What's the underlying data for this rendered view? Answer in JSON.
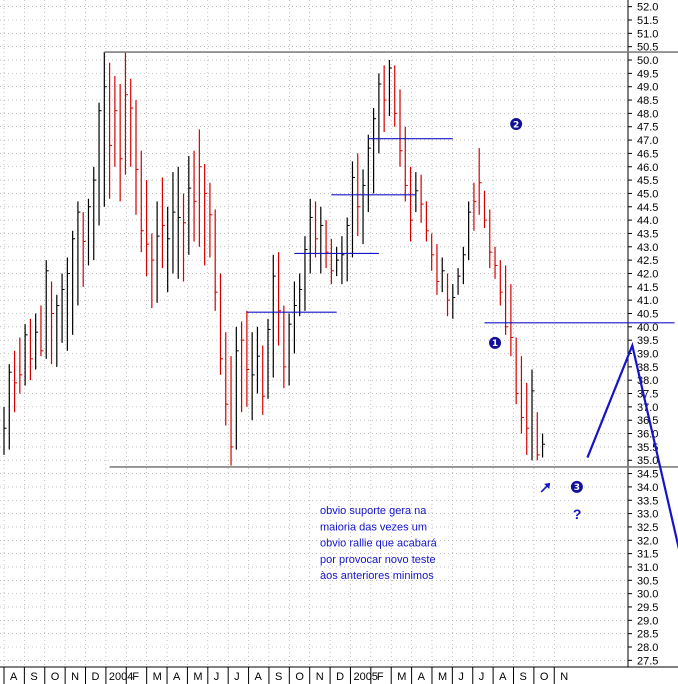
{
  "chart_data": {
    "type": "bar",
    "subtype": "ohlc-price-bars",
    "title": "",
    "xlabel": "",
    "ylabel": "",
    "ylim": [
      27.25,
      52.25
    ],
    "y_ticks": [
      27.5,
      28.0,
      28.5,
      29.0,
      29.5,
      30.0,
      30.5,
      31.0,
      31.5,
      32.0,
      32.5,
      33.0,
      33.5,
      34.0,
      34.5,
      35.0,
      35.5,
      36.0,
      36.5,
      37.0,
      37.5,
      38.0,
      38.5,
      39.0,
      39.5,
      40.0,
      40.5,
      41.0,
      41.5,
      42.0,
      42.5,
      43.0,
      43.5,
      44.0,
      44.5,
      45.0,
      45.5,
      46.0,
      46.5,
      47.0,
      47.5,
      48.0,
      48.5,
      49.0,
      49.5,
      50.0,
      50.5,
      51.0,
      51.5,
      52.0
    ],
    "y_tick_labels": [
      "27.5",
      "28.0",
      "28.5",
      "29.0",
      "29.5",
      "30.0",
      "30.5",
      "31.0",
      "31.5",
      "32.0",
      "32.5",
      "33.0",
      "33.5",
      "34.0",
      "34.5",
      "35.0",
      "35.5",
      "36.0",
      "36.5",
      "37.0",
      "37.5",
      "38.0",
      "38.5",
      "39.0",
      "39.5",
      "40.0",
      "40.5",
      "41.0",
      "41.5",
      "42.0",
      "42.5",
      "43.0",
      "43.5",
      "44.0",
      "44.5",
      "45.0",
      "45.5",
      "46.0",
      "46.5",
      "47.0",
      "47.5",
      "48.0",
      "48.5",
      "49.0",
      "49.5",
      "50.0",
      "50.5",
      "51.0",
      "51.5",
      "52.0"
    ],
    "x_tick_labels": [
      "A",
      "S",
      "O",
      "N",
      "D",
      "2004",
      "F",
      "M",
      "A",
      "M",
      "J",
      "J",
      "A",
      "S",
      "O",
      "N",
      "D",
      "2005",
      "F",
      "M",
      "A",
      "M",
      "J",
      "J",
      "A",
      "S",
      "O",
      "N"
    ],
    "colors": {
      "up": "#000000",
      "down": "#d40000",
      "annotation": "#1414c8",
      "level_line": "#808080"
    },
    "bars": [
      {
        "l": 35.2,
        "h": 37.0,
        "c": 36.2,
        "up": true
      },
      {
        "l": 35.4,
        "h": 38.6,
        "c": 38.3,
        "up": true
      },
      {
        "l": 36.8,
        "h": 39.1,
        "c": 37.9,
        "up": false
      },
      {
        "l": 37.5,
        "h": 39.6,
        "c": 38.2,
        "up": false
      },
      {
        "l": 37.8,
        "h": 40.1,
        "c": 39.7,
        "up": true
      },
      {
        "l": 38.0,
        "h": 40.3,
        "c": 38.8,
        "up": false
      },
      {
        "l": 38.4,
        "h": 40.5,
        "c": 39.8,
        "up": true
      },
      {
        "l": 38.9,
        "h": 40.8,
        "c": 39.1,
        "up": false
      },
      {
        "l": 38.8,
        "h": 42.5,
        "c": 42.1,
        "up": true
      },
      {
        "l": 38.6,
        "h": 41.7,
        "c": 40.5,
        "up": false
      },
      {
        "l": 38.5,
        "h": 41.2,
        "c": 40.8,
        "up": true
      },
      {
        "l": 39.4,
        "h": 42.0,
        "c": 41.4,
        "up": true
      },
      {
        "l": 39.1,
        "h": 42.6,
        "c": 42.0,
        "up": true
      },
      {
        "l": 39.7,
        "h": 43.6,
        "c": 43.3,
        "up": true
      },
      {
        "l": 40.8,
        "h": 44.7,
        "c": 44.3,
        "up": true
      },
      {
        "l": 41.5,
        "h": 44.3,
        "c": 43.2,
        "up": false
      },
      {
        "l": 42.3,
        "h": 44.8,
        "c": 44.5,
        "up": true
      },
      {
        "l": 42.5,
        "h": 46.0,
        "c": 45.5,
        "up": true
      },
      {
        "l": 43.8,
        "h": 48.4,
        "c": 48.1,
        "up": true
      },
      {
        "l": 44.5,
        "h": 50.3,
        "c": 49.0,
        "up": true
      },
      {
        "l": 44.8,
        "h": 49.9,
        "c": 46.8,
        "up": false
      },
      {
        "l": 46.0,
        "h": 49.4,
        "c": 48.1,
        "up": false
      },
      {
        "l": 44.7,
        "h": 49.1,
        "c": 46.3,
        "up": false
      },
      {
        "l": 45.7,
        "h": 50.3,
        "c": 48.7,
        "up": false
      },
      {
        "l": 46.0,
        "h": 49.3,
        "c": 48.2,
        "up": false
      },
      {
        "l": 44.2,
        "h": 48.5,
        "c": 45.9,
        "up": false
      },
      {
        "l": 42.8,
        "h": 46.6,
        "c": 43.6,
        "up": false
      },
      {
        "l": 41.9,
        "h": 45.5,
        "c": 43.1,
        "up": false
      },
      {
        "l": 40.7,
        "h": 43.5,
        "c": 42.5,
        "up": false
      },
      {
        "l": 40.9,
        "h": 44.7,
        "c": 43.4,
        "up": true
      },
      {
        "l": 42.2,
        "h": 45.6,
        "c": 43.8,
        "up": false
      },
      {
        "l": 41.3,
        "h": 44.5,
        "c": 43.3,
        "up": true
      },
      {
        "l": 42.0,
        "h": 45.8,
        "c": 44.3,
        "up": true
      },
      {
        "l": 41.8,
        "h": 46.0,
        "c": 44.1,
        "up": true
      },
      {
        "l": 41.7,
        "h": 45.0,
        "c": 43.9,
        "up": false
      },
      {
        "l": 42.7,
        "h": 46.4,
        "c": 45.2,
        "up": true
      },
      {
        "l": 43.2,
        "h": 46.6,
        "c": 44.7,
        "up": false
      },
      {
        "l": 43.0,
        "h": 47.4,
        "c": 46.0,
        "up": false
      },
      {
        "l": 42.3,
        "h": 46.1,
        "c": 45.0,
        "up": false
      },
      {
        "l": 42.6,
        "h": 45.4,
        "c": 44.2,
        "up": false
      },
      {
        "l": 40.6,
        "h": 44.4,
        "c": 41.3,
        "up": false
      },
      {
        "l": 38.2,
        "h": 42.0,
        "c": 38.8,
        "up": false
      },
      {
        "l": 36.3,
        "h": 39.8,
        "c": 37.1,
        "up": false
      },
      {
        "l": 34.8,
        "h": 38.9,
        "c": 35.5,
        "up": false
      },
      {
        "l": 35.4,
        "h": 40.0,
        "c": 39.1,
        "up": true
      },
      {
        "l": 36.8,
        "h": 40.2,
        "c": 39.5,
        "up": false
      },
      {
        "l": 37.0,
        "h": 40.6,
        "c": 38.4,
        "up": false
      },
      {
        "l": 36.5,
        "h": 39.8,
        "c": 38.2,
        "up": true
      },
      {
        "l": 37.5,
        "h": 40.0,
        "c": 38.9,
        "up": true
      },
      {
        "l": 36.7,
        "h": 39.3,
        "c": 37.4,
        "up": false
      },
      {
        "l": 37.3,
        "h": 40.3,
        "c": 39.9,
        "up": true
      },
      {
        "l": 38.1,
        "h": 42.7,
        "c": 41.9,
        "up": true
      },
      {
        "l": 39.3,
        "h": 42.8,
        "c": 40.6,
        "up": false
      },
      {
        "l": 37.7,
        "h": 40.8,
        "c": 38.5,
        "up": false
      },
      {
        "l": 37.8,
        "h": 40.5,
        "c": 40.1,
        "up": true
      },
      {
        "l": 39.0,
        "h": 41.7,
        "c": 40.8,
        "up": true
      },
      {
        "l": 40.4,
        "h": 42.0,
        "c": 41.4,
        "up": true
      },
      {
        "l": 40.6,
        "h": 43.4,
        "c": 42.9,
        "up": true
      },
      {
        "l": 42.0,
        "h": 44.8,
        "c": 44.1,
        "up": true
      },
      {
        "l": 42.6,
        "h": 44.7,
        "c": 43.3,
        "up": false
      },
      {
        "l": 42.0,
        "h": 44.5,
        "c": 43.8,
        "up": true
      },
      {
        "l": 42.2,
        "h": 44.0,
        "c": 42.8,
        "up": false
      },
      {
        "l": 41.6,
        "h": 43.3,
        "c": 42.1,
        "up": false
      },
      {
        "l": 41.9,
        "h": 43.0,
        "c": 42.5,
        "up": true
      },
      {
        "l": 41.6,
        "h": 43.4,
        "c": 42.7,
        "up": true
      },
      {
        "l": 41.7,
        "h": 44.1,
        "c": 43.8,
        "up": true
      },
      {
        "l": 42.6,
        "h": 46.2,
        "c": 45.6,
        "up": true
      },
      {
        "l": 43.4,
        "h": 46.5,
        "c": 44.5,
        "up": false
      },
      {
        "l": 43.1,
        "h": 45.9,
        "c": 45.3,
        "up": true
      },
      {
        "l": 44.3,
        "h": 47.2,
        "c": 46.7,
        "up": true
      },
      {
        "l": 45.0,
        "h": 48.2,
        "c": 47.8,
        "up": true
      },
      {
        "l": 46.5,
        "h": 49.5,
        "c": 49.1,
        "up": true
      },
      {
        "l": 47.3,
        "h": 49.8,
        "c": 48.5,
        "up": false
      },
      {
        "l": 47.9,
        "h": 50.0,
        "c": 49.7,
        "up": true
      },
      {
        "l": 47.5,
        "h": 49.8,
        "c": 48.0,
        "up": false
      },
      {
        "l": 46.0,
        "h": 48.9,
        "c": 46.6,
        "up": false
      },
      {
        "l": 44.7,
        "h": 47.5,
        "c": 45.3,
        "up": false
      },
      {
        "l": 43.2,
        "h": 46.0,
        "c": 44.0,
        "up": false
      },
      {
        "l": 44.3,
        "h": 45.8,
        "c": 45.1,
        "up": true
      },
      {
        "l": 43.9,
        "h": 45.7,
        "c": 44.6,
        "up": false
      },
      {
        "l": 43.2,
        "h": 44.7,
        "c": 43.6,
        "up": false
      },
      {
        "l": 42.1,
        "h": 43.5,
        "c": 42.7,
        "up": false
      },
      {
        "l": 41.2,
        "h": 43.1,
        "c": 41.7,
        "up": false
      },
      {
        "l": 41.3,
        "h": 42.6,
        "c": 42.1,
        "up": true
      },
      {
        "l": 40.4,
        "h": 42.0,
        "c": 41.0,
        "up": false
      },
      {
        "l": 40.3,
        "h": 41.6,
        "c": 41.1,
        "up": true
      },
      {
        "l": 41.2,
        "h": 42.2,
        "c": 41.9,
        "up": true
      },
      {
        "l": 41.6,
        "h": 43.0,
        "c": 42.7,
        "up": true
      },
      {
        "l": 42.5,
        "h": 44.7,
        "c": 44.3,
        "up": true
      },
      {
        "l": 43.6,
        "h": 45.4,
        "c": 44.7,
        "up": false
      },
      {
        "l": 44.2,
        "h": 46.7,
        "c": 45.4,
        "up": false
      },
      {
        "l": 43.7,
        "h": 45.1,
        "c": 44.0,
        "up": false
      },
      {
        "l": 42.2,
        "h": 44.4,
        "c": 42.8,
        "up": false
      },
      {
        "l": 41.8,
        "h": 43.0,
        "c": 42.3,
        "up": false
      },
      {
        "l": 40.8,
        "h": 42.5,
        "c": 41.3,
        "up": false
      },
      {
        "l": 39.7,
        "h": 42.3,
        "c": 40.0,
        "up": false
      },
      {
        "l": 38.9,
        "h": 41.6,
        "c": 39.6,
        "up": false
      },
      {
        "l": 37.1,
        "h": 39.6,
        "c": 37.5,
        "up": false
      },
      {
        "l": 36.0,
        "h": 38.9,
        "c": 36.6,
        "up": false
      },
      {
        "l": 35.2,
        "h": 37.9,
        "c": 36.2,
        "up": false
      },
      {
        "l": 35.0,
        "h": 38.4,
        "c": 37.6,
        "up": true
      },
      {
        "l": 35.0,
        "h": 36.8,
        "c": 35.2,
        "up": false
      },
      {
        "l": 35.1,
        "h": 36.0,
        "c": 35.6,
        "up": true
      }
    ],
    "horizontal_levels": [
      {
        "y": 50.3,
        "x_from": 19,
        "x_to": 137,
        "color": "gray"
      },
      {
        "y": 34.75,
        "x_from": 20,
        "x_to": 137,
        "color": "gray"
      },
      {
        "y": 40.55,
        "x_from": 46,
        "x_to": 63,
        "color": "blue"
      },
      {
        "y": 42.75,
        "x_from": 55,
        "x_to": 71,
        "color": "blue"
      },
      {
        "y": 44.95,
        "x_from": 62,
        "x_to": 78,
        "color": "blue"
      },
      {
        "y": 47.05,
        "x_from": 69,
        "x_to": 85,
        "color": "blue"
      },
      {
        "y": 40.15,
        "x_from": 91,
        "x_to": 127,
        "color": "blue"
      }
    ],
    "projection": [
      [
        110.5,
        35.1
      ],
      [
        119.0,
        39.3
      ],
      [
        130.0,
        29.8
      ]
    ],
    "markers": [
      {
        "label": "1",
        "x": 93.0,
        "y": 39.4
      },
      {
        "label": "2",
        "x": 97.0,
        "y": 47.6
      },
      {
        "label": "3",
        "x": 108.5,
        "y": 34.0
      }
    ],
    "question_mark": "?",
    "arrow_at": [
      102.5,
      34.0
    ],
    "annotation": [
      "obvio suporte gera na",
      "maioria das vezes um",
      "obvio rallie que acabará",
      "por provocar novo teste",
      "àos anteriores minimos"
    ]
  }
}
